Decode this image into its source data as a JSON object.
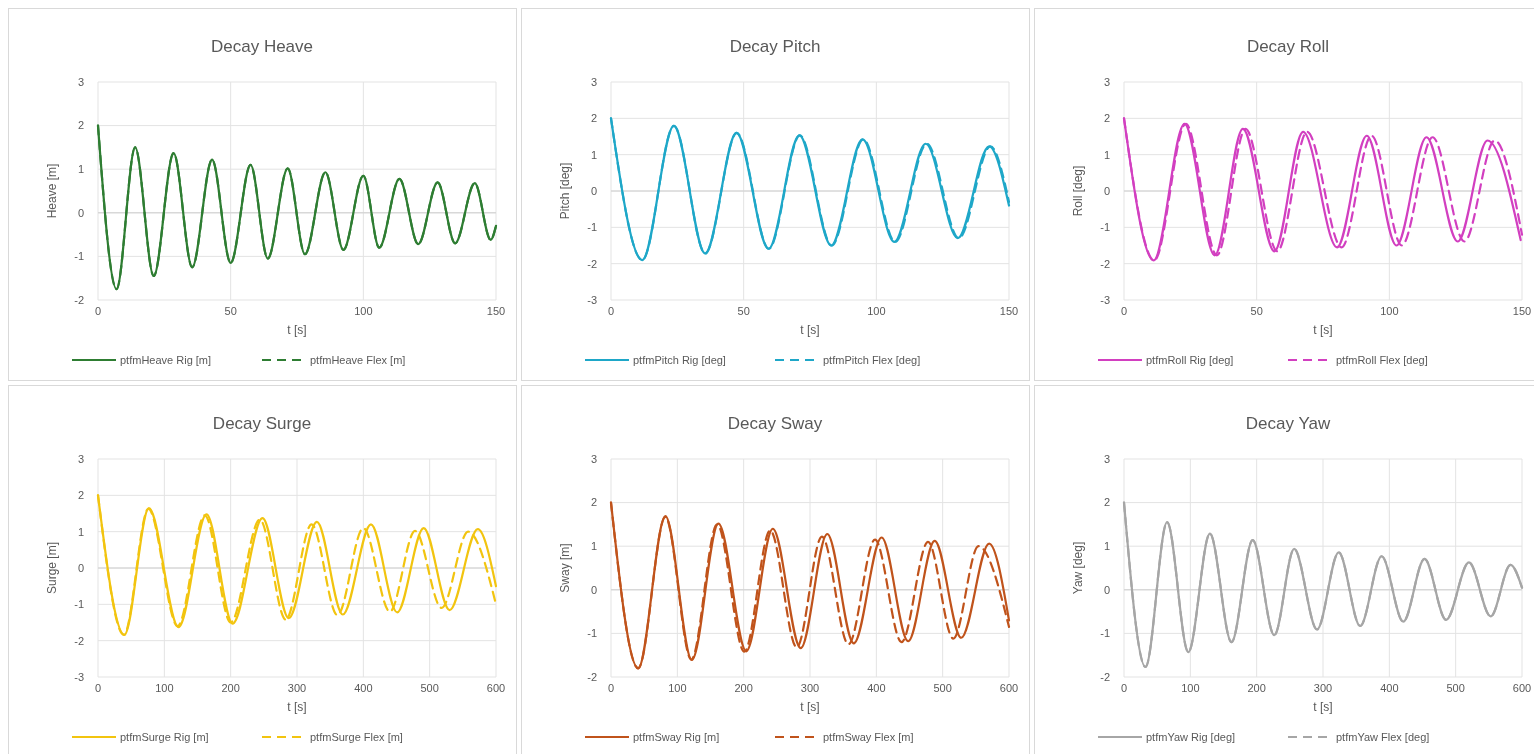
{
  "chart_data": [
    {
      "type": "line",
      "title": "Decay Heave",
      "xlabel": "t [s]",
      "ylabel": "Heave [m]",
      "xlim": [
        0,
        150
      ],
      "xticks": [
        0,
        50,
        100,
        150
      ],
      "ylim": [
        -2,
        3
      ],
      "yticks": [
        -2,
        -1,
        0,
        1,
        2,
        3
      ],
      "grid": true,
      "legend": "bottom",
      "marker": "none",
      "series": [
        {
          "name": "ptfmHeave Rig [m]",
          "color": "#2e7d32",
          "line_style": "solid",
          "x": [
            0,
            7,
            14,
            21,
            28.5,
            35.5,
            43,
            50,
            57.5,
            64,
            71.5,
            78,
            85.7,
            92.5,
            100,
            106,
            113.6,
            120.7,
            128,
            134.6,
            142,
            148,
            150
          ],
          "values": [
            2,
            -1.75,
            1.5,
            -1.45,
            1.37,
            -1.25,
            1.22,
            -1.15,
            1.1,
            -1.05,
            1.02,
            -0.95,
            0.93,
            -0.85,
            0.85,
            -0.8,
            0.78,
            -0.72,
            0.7,
            -0.7,
            0.68,
            -0.62,
            -0.3
          ]
        },
        {
          "name": "ptfmHeave Flex [m]",
          "color": "#2e7d32",
          "line_style": "dashed",
          "x": [
            0,
            7,
            14,
            21,
            28.5,
            35.5,
            43,
            50,
            57.5,
            64,
            71.5,
            78,
            85.7,
            92.5,
            100,
            106,
            113.6,
            120.7,
            128,
            134.6,
            142,
            148,
            150
          ],
          "values": [
            2,
            -1.75,
            1.5,
            -1.45,
            1.37,
            -1.25,
            1.22,
            -1.15,
            1.1,
            -1.05,
            1.02,
            -0.95,
            0.93,
            -0.85,
            0.85,
            -0.8,
            0.78,
            -0.72,
            0.7,
            -0.7,
            0.68,
            -0.62,
            -0.3
          ]
        }
      ]
    },
    {
      "type": "line",
      "title": "Decay Pitch",
      "xlabel": "t [s]",
      "ylabel": "Pitch [deg]",
      "xlim": [
        0,
        150
      ],
      "xticks": [
        0,
        50,
        100,
        150
      ],
      "ylim": [
        -3,
        3
      ],
      "yticks": [
        -3,
        -2,
        -1,
        0,
        1,
        2,
        3
      ],
      "grid": true,
      "legend": "bottom",
      "marker": "none",
      "series": [
        {
          "name": "ptfmPitch Rig [deg]",
          "color": "#1ea7c8",
          "line_style": "solid",
          "x": [
            0,
            11.8,
            23.7,
            35.5,
            47.3,
            59.4,
            71,
            83,
            94.8,
            106.8,
            118.6,
            130.7,
            142.5,
            150
          ],
          "values": [
            2,
            -1.9,
            1.79,
            -1.72,
            1.6,
            -1.59,
            1.53,
            -1.5,
            1.42,
            -1.4,
            1.3,
            -1.3,
            1.23,
            -0.4
          ]
        },
        {
          "name": "ptfmPitch Flex [deg]",
          "color": "#1ea7c8",
          "line_style": "dashed",
          "x": [
            0,
            11.8,
            23.7,
            35.5,
            47.4,
            59.5,
            71.2,
            83.2,
            95.1,
            107.1,
            119,
            131.1,
            143,
            150
          ],
          "values": [
            2,
            -1.9,
            1.79,
            -1.72,
            1.6,
            -1.59,
            1.53,
            -1.5,
            1.42,
            -1.4,
            1.3,
            -1.3,
            1.23,
            -0.3
          ]
        }
      ]
    },
    {
      "type": "line",
      "title": "Decay Roll",
      "xlabel": "t [s]",
      "ylabel": "Roll [deg]",
      "xlim": [
        0,
        150
      ],
      "xticks": [
        0,
        50,
        100,
        150
      ],
      "ylim": [
        -3,
        3
      ],
      "yticks": [
        -3,
        -2,
        -1,
        0,
        1,
        2,
        3
      ],
      "grid": true,
      "legend": "bottom",
      "marker": "none",
      "series": [
        {
          "name": "ptfmRoll Rig [deg]",
          "color": "#d23fc0",
          "line_style": "solid",
          "x": [
            0,
            11.2,
            22.8,
            34.2,
            44.8,
            56.7,
            67.5,
            80.3,
            91.5,
            102.7,
            114,
            125.8,
            137,
            149.5
          ],
          "values": [
            2,
            -1.91,
            1.85,
            -1.77,
            1.71,
            -1.66,
            1.63,
            -1.55,
            1.52,
            -1.5,
            1.48,
            -1.39,
            1.39,
            -1.35
          ]
        },
        {
          "name": "ptfmRoll Flex [deg]",
          "color": "#d23fc0",
          "line_style": "dashed",
          "x": [
            0,
            11.4,
            23.3,
            35,
            45.8,
            57.8,
            69,
            82,
            93.3,
            104.7,
            116.3,
            128.3,
            139.7,
            150
          ],
          "values": [
            2,
            -1.91,
            1.85,
            -1.77,
            1.71,
            -1.66,
            1.63,
            -1.55,
            1.52,
            -1.5,
            1.48,
            -1.39,
            1.39,
            -1.2
          ]
        }
      ]
    },
    {
      "type": "line",
      "title": "Decay Surge",
      "xlabel": "t [s]",
      "ylabel": "Surge [m]",
      "xlim": [
        0,
        600
      ],
      "xticks": [
        0,
        100,
        200,
        300,
        400,
        500,
        600
      ],
      "ylim": [
        -3,
        3
      ],
      "yticks": [
        -3,
        -2,
        -1,
        0,
        1,
        2,
        3
      ],
      "grid": true,
      "legend": "bottom",
      "marker": "none",
      "series": [
        {
          "name": "ptfmSurge Rig [m]",
          "color": "#f2c40f",
          "line_style": "solid",
          "x": [
            0,
            39.7,
            76.8,
            121.5,
            163.6,
            203,
            248,
            287.6,
            330,
            369,
            411.5,
            451,
            491,
            530,
            572.6,
            600
          ],
          "values": [
            2,
            -1.84,
            1.65,
            -1.63,
            1.48,
            -1.53,
            1.37,
            -1.38,
            1.27,
            -1.28,
            1.2,
            -1.22,
            1.1,
            -1.16,
            1.07,
            -0.5
          ]
        },
        {
          "name": "ptfmSurge Flex [m]",
          "color": "#f2c40f",
          "line_style": "dashed",
          "x": [
            0,
            39,
            76,
            120,
            161,
            200,
            244,
            283,
            322,
            361,
            400,
            440,
            478,
            518,
            558,
            600
          ],
          "values": [
            2,
            -1.84,
            1.63,
            -1.6,
            1.45,
            -1.5,
            1.33,
            -1.42,
            1.2,
            -1.3,
            1.1,
            -1.2,
            1.02,
            -1.1,
            1,
            -1
          ]
        }
      ]
    },
    {
      "type": "line",
      "title": "Decay Sway",
      "xlabel": "t [s]",
      "ylabel": "Sway [m]",
      "xlim": [
        0,
        600
      ],
      "xticks": [
        0,
        100,
        200,
        300,
        400,
        500,
        600
      ],
      "ylim": [
        -2,
        3
      ],
      "yticks": [
        -2,
        -1,
        0,
        1,
        2,
        3
      ],
      "grid": true,
      "legend": "bottom",
      "marker": "none",
      "series": [
        {
          "name": "ptfmSway Rig [m]",
          "color": "#c0531b",
          "line_style": "solid",
          "x": [
            0,
            41,
            82,
            122,
            162,
            204,
            244,
            286,
            326,
            366,
            408,
            448,
            488,
            528,
            570,
            600
          ],
          "values": [
            2,
            -1.8,
            1.69,
            -1.61,
            1.52,
            -1.41,
            1.4,
            -1.34,
            1.28,
            -1.23,
            1.2,
            -1.18,
            1.12,
            -1.1,
            1.06,
            -0.7
          ]
        },
        {
          "name": "ptfmSway Flex [m]",
          "color": "#c0531b",
          "line_style": "dashed",
          "x": [
            0,
            41,
            82,
            121,
            160,
            201,
            240,
            280,
            318,
            358,
            398,
            438,
            478,
            516,
            554,
            600
          ],
          "values": [
            2,
            -1.8,
            1.67,
            -1.6,
            1.5,
            -1.42,
            1.36,
            -1.32,
            1.22,
            -1.25,
            1.15,
            -1.2,
            1.1,
            -1.12,
            1,
            -0.85
          ]
        }
      ]
    },
    {
      "type": "line",
      "title": "Decay Yaw",
      "xlabel": "t [s]",
      "ylabel": "Yaw [deg]",
      "xlim": [
        0,
        600
      ],
      "xticks": [
        0,
        100,
        200,
        300,
        400,
        500,
        600
      ],
      "ylim": [
        -2,
        3
      ],
      "yticks": [
        -2,
        -1,
        0,
        1,
        2,
        3
      ],
      "grid": true,
      "legend": "bottom",
      "marker": "none",
      "series": [
        {
          "name": "ptfmYaw Rig [deg]",
          "color": "#a6a6a6",
          "line_style": "solid",
          "x": [
            0,
            32.4,
            65,
            97,
            129.5,
            162,
            194,
            226.6,
            256.5,
            291,
            323.7,
            356,
            388.4,
            421,
            453,
            485.6,
            520,
            552.8,
            582.7,
            600
          ],
          "values": [
            2,
            -1.77,
            1.55,
            -1.43,
            1.29,
            -1.2,
            1.14,
            -1.04,
            0.94,
            -0.91,
            0.86,
            -0.83,
            0.77,
            -0.73,
            0.71,
            -0.69,
            0.63,
            -0.61,
            0.57,
            0.05
          ]
        },
        {
          "name": "ptfmYaw Flex [deg]",
          "color": "#a6a6a6",
          "line_style": "dashed",
          "x": [
            0,
            32.4,
            65,
            97,
            129.5,
            162,
            194,
            226.6,
            256.5,
            291,
            323.7,
            356,
            388.4,
            421,
            453,
            485.6,
            520,
            552.8,
            582.7,
            600
          ],
          "values": [
            2,
            -1.77,
            1.55,
            -1.43,
            1.29,
            -1.2,
            1.14,
            -1.04,
            0.94,
            -0.91,
            0.86,
            -0.83,
            0.77,
            -0.73,
            0.71,
            -0.69,
            0.63,
            -0.61,
            0.57,
            0.05
          ]
        }
      ]
    }
  ]
}
